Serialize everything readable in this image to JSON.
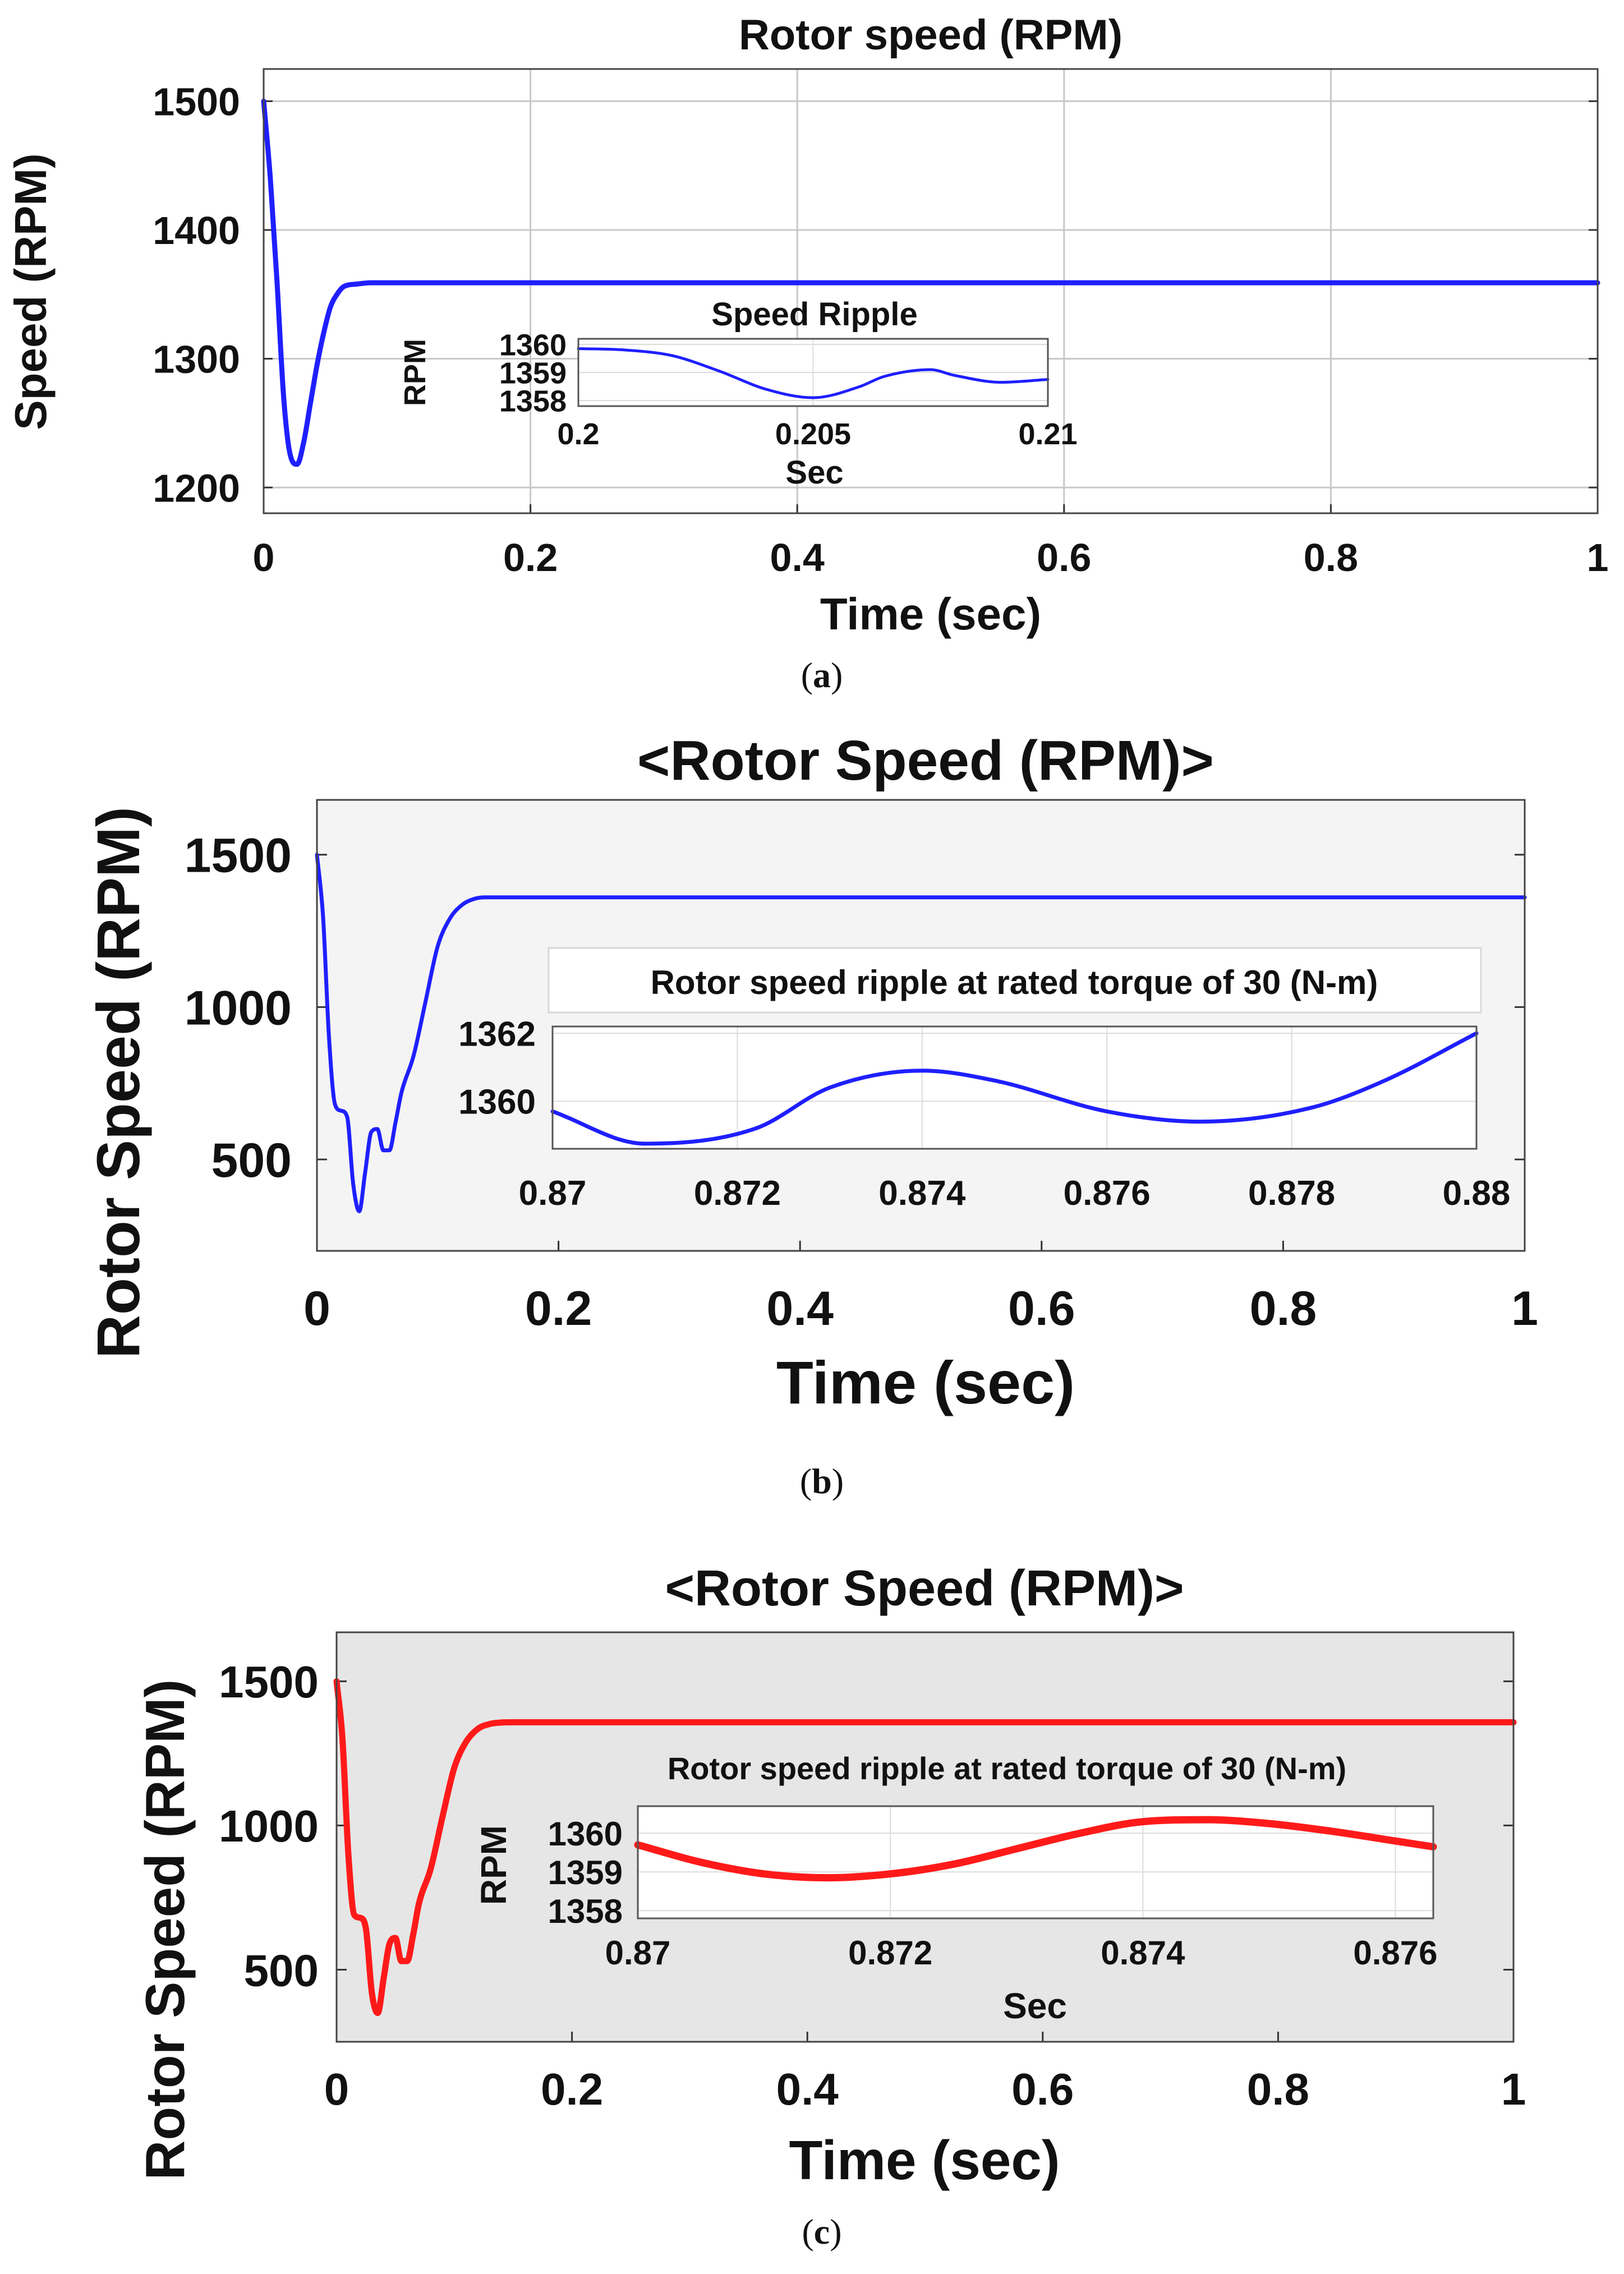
{
  "chart_data": [
    {
      "id": "a",
      "type": "line",
      "title": "Rotor speed (RPM)",
      "xlabel": "Time (sec)",
      "ylabel": "Speed (RPM)",
      "caption": "a",
      "xlim": [
        0,
        1
      ],
      "ylim": [
        1180,
        1525
      ],
      "xticks": [
        0,
        0.2,
        0.4,
        0.6,
        0.8,
        1
      ],
      "xtick_labels": [
        "0",
        "0.2",
        "0.4",
        "0.6",
        "0.8",
        "1"
      ],
      "yticks": [
        1200,
        1300,
        1400,
        1500
      ],
      "ytick_labels": [
        "1200",
        "1300",
        "1400",
        "1500"
      ],
      "grid": true,
      "color": "#1f1fff",
      "series": [
        {
          "name": "Rotor speed",
          "x": [
            0,
            0.005,
            0.01,
            0.015,
            0.02,
            0.025,
            0.03,
            0.035,
            0.04,
            0.045,
            0.05,
            0.055,
            0.06,
            0.07,
            0.08,
            0.1,
            1
          ],
          "y": [
            1500,
            1440,
            1360,
            1270,
            1225,
            1218,
            1235,
            1265,
            1295,
            1320,
            1340,
            1350,
            1356,
            1358,
            1359,
            1359,
            1359
          ]
        }
      ],
      "inset": {
        "title": "Speed Ripple",
        "xlabel": "Sec",
        "ylabel": "RPM",
        "xlim": [
          0.2,
          0.21
        ],
        "ylim": [
          1357.8,
          1360.2
        ],
        "xticks": [
          0.2,
          0.205,
          0.21
        ],
        "xtick_labels": [
          "0.2",
          "0.205",
          "0.21"
        ],
        "yticks": [
          1358,
          1359,
          1360
        ],
        "ytick_labels": [
          "1358",
          "1359",
          "1360"
        ],
        "series": [
          {
            "name": "Speed Ripple",
            "x": [
              0.2,
              0.201,
              0.202,
              0.203,
              0.204,
              0.205,
              0.206,
              0.2065,
              0.2075,
              0.208,
              0.209,
              0.21
            ],
            "y": [
              1359.85,
              1359.8,
              1359.6,
              1359.05,
              1358.4,
              1358.1,
              1358.5,
              1358.85,
              1359.1,
              1358.9,
              1358.65,
              1358.75
            ]
          }
        ]
      }
    },
    {
      "id": "b",
      "type": "line",
      "title": "<Rotor Speed (RPM)>",
      "xlabel": "Time (sec)",
      "ylabel": "Rotor Speed (RPM)",
      "caption": "b",
      "xlim": [
        0,
        1
      ],
      "ylim": [
        200,
        1680
      ],
      "xticks": [
        0,
        0.2,
        0.4,
        0.6,
        0.8,
        1
      ],
      "xtick_labels": [
        "0",
        "0.2",
        "0.4",
        "0.6",
        "0.8",
        "1"
      ],
      "yticks": [
        500,
        1000,
        1500
      ],
      "ytick_labels": [
        "500",
        "1000",
        "1500"
      ],
      "grid": false,
      "color": "#1f1fff",
      "series": [
        {
          "name": "Rotor speed",
          "x": [
            0,
            0.005,
            0.01,
            0.015,
            0.02,
            0.025,
            0.03,
            0.035,
            0.04,
            0.045,
            0.05,
            0.055,
            0.06,
            0.065,
            0.07,
            0.08,
            0.09,
            0.1,
            0.11,
            0.12,
            0.13,
            0.14,
            0.15,
            1
          ],
          "y": [
            1500,
            1300,
            900,
            680,
            660,
            640,
            420,
            330,
            460,
            590,
            600,
            530,
            530,
            620,
            720,
            840,
            1020,
            1200,
            1290,
            1335,
            1355,
            1360,
            1360,
            1360
          ]
        }
      ],
      "inset": {
        "title": "Rotor speed ripple at rated torque of 30 (N-m)",
        "xlabel": "",
        "ylabel": "",
        "xlim": [
          0.87,
          0.88
        ],
        "ylim": [
          1358.6,
          1362.2
        ],
        "xticks": [
          0.87,
          0.872,
          0.874,
          0.876,
          0.878,
          0.88
        ],
        "xtick_labels": [
          "0.87",
          "0.872",
          "0.874",
          "0.876",
          "0.878",
          "0.88"
        ],
        "yticks": [
          1360,
          1362
        ],
        "ytick_labels": [
          "1360",
          "1362"
        ],
        "series": [
          {
            "name": "Rotor speed ripple",
            "x": [
              0.87,
              0.871,
              0.8722,
              0.873,
              0.874,
              0.8748,
              0.876,
              0.877,
              0.8782,
              0.879,
              0.88
            ],
            "y": [
              1359.7,
              1358.75,
              1359.2,
              1360.4,
              1360.9,
              1360.6,
              1359.7,
              1359.4,
              1359.8,
              1360.6,
              1362
            ]
          }
        ]
      }
    },
    {
      "id": "c",
      "type": "line",
      "title": "<Rotor Speed (RPM)>",
      "xlabel": "Time (sec)",
      "ylabel": "Rotor Speed (RPM)",
      "caption": "c",
      "xlim": [
        0,
        1
      ],
      "ylim": [
        250,
        1670
      ],
      "xticks": [
        0,
        0.2,
        0.4,
        0.6,
        0.8,
        1
      ],
      "xtick_labels": [
        "0",
        "0.2",
        "0.4",
        "0.6",
        "0.8",
        "1"
      ],
      "yticks": [
        500,
        1000,
        1500
      ],
      "ytick_labels": [
        "500",
        "1000",
        "1500"
      ],
      "grid": false,
      "color": "#ff1a1a",
      "series": [
        {
          "name": "Rotor speed",
          "x": [
            0,
            0.005,
            0.01,
            0.015,
            0.02,
            0.025,
            0.03,
            0.035,
            0.04,
            0.045,
            0.05,
            0.055,
            0.06,
            0.065,
            0.07,
            0.08,
            0.09,
            0.1,
            0.11,
            0.12,
            0.13,
            0.14,
            0.15,
            1
          ],
          "y": [
            1500,
            1300,
            900,
            690,
            680,
            640,
            420,
            350,
            470,
            590,
            610,
            530,
            530,
            620,
            730,
            850,
            1030,
            1200,
            1290,
            1335,
            1352,
            1357,
            1358,
            1358
          ]
        }
      ],
      "inset": {
        "title": "Rotor speed ripple at rated torque of 30 (N-m)",
        "xlabel": "Sec",
        "ylabel": "RPM",
        "xlim": [
          0.87,
          0.8763
        ],
        "ylim": [
          1357.8,
          1360.7
        ],
        "xticks": [
          0.87,
          0.872,
          0.874,
          0.876
        ],
        "xtick_labels": [
          "0.87",
          "0.872",
          "0.874",
          "0.876"
        ],
        "yticks": [
          1358,
          1359,
          1360
        ],
        "ytick_labels": [
          "1358",
          "1359",
          "1360"
        ],
        "series": [
          {
            "name": "Rotor speed ripple",
            "x": [
              0.87,
              0.8705,
              0.871,
              0.8715,
              0.872,
              0.8725,
              0.873,
              0.8735,
              0.874,
              0.8745,
              0.875,
              0.8755,
              0.876,
              0.8763
            ],
            "y": [
              1359.7,
              1359.25,
              1358.95,
              1358.85,
              1358.95,
              1359.2,
              1359.6,
              1360.0,
              1360.3,
              1360.35,
              1360.25,
              1360.05,
              1359.8,
              1359.65
            ]
          }
        ]
      }
    }
  ]
}
